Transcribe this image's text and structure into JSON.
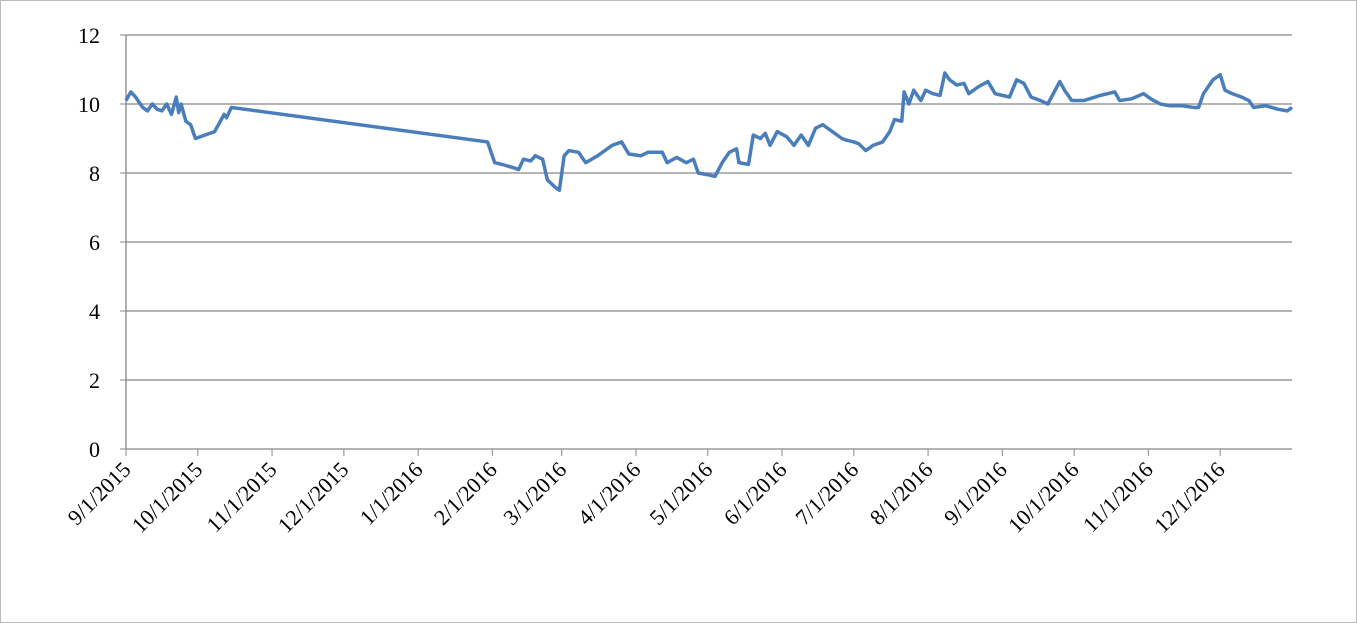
{
  "chart_data": {
    "type": "line",
    "x": [
      "9/1/2015",
      "9/3/2015",
      "9/5/2015",
      "9/8/2015",
      "9/10/2015",
      "9/12/2015",
      "9/14/2015",
      "9/16/2015",
      "9/18/2015",
      "9/20/2015",
      "9/22/2015",
      "9/23/2015",
      "9/24/2015",
      "9/26/2015",
      "9/28/2015",
      "9/30/2015",
      "10/2/2015",
      "10/8/2015",
      "10/12/2015",
      "10/13/2015",
      "10/15/2015",
      "1/30/2016",
      "2/2/2016",
      "2/5/2016",
      "2/10/2016",
      "2/12/2016",
      "2/14/2016",
      "2/17/2016",
      "2/19/2016",
      "2/22/2016",
      "2/24/2016",
      "2/27/2016",
      "2/29/2016",
      "3/2/2016",
      "3/4/2016",
      "3/8/2016",
      "3/11/2016",
      "3/16/2016",
      "3/22/2016",
      "3/26/2016",
      "3/29/2016",
      "4/3/2016",
      "4/6/2016",
      "4/12/2016",
      "4/14/2016",
      "4/18/2016",
      "4/22/2016",
      "4/25/2016",
      "4/27/2016",
      "5/1/2016",
      "5/4/2016",
      "5/7/2016",
      "5/10/2016",
      "5/13/2016",
      "5/14/2016",
      "5/18/2016",
      "5/20/2016",
      "5/23/2016",
      "5/25/2016",
      "5/27/2016",
      "5/30/2016",
      "6/3/2016",
      "6/6/2016",
      "6/9/2016",
      "6/12/2016",
      "6/15/2016",
      "6/18/2016",
      "6/22/2016",
      "6/26/2016",
      "6/28/2016",
      "7/1/2016",
      "7/3/2016",
      "7/6/2016",
      "7/9/2016",
      "7/13/2016",
      "7/16/2016",
      "7/18/2016",
      "7/21/2016",
      "7/22/2016",
      "7/24/2016",
      "7/26/2016",
      "7/29/2016",
      "7/31/2016",
      "8/3/2016",
      "8/6/2016",
      "8/8/2016",
      "8/10/2016",
      "8/13/2016",
      "8/16/2016",
      "8/18/2016",
      "8/22/2016",
      "8/26/2016",
      "8/29/2016",
      "9/1/2016",
      "9/4/2016",
      "9/7/2016",
      "9/10/2016",
      "9/13/2016",
      "9/17/2016",
      "9/20/2016",
      "9/25/2016",
      "9/27/2016",
      "9/30/2016",
      "10/5/2016",
      "10/12/2016",
      "10/18/2016",
      "10/20/2016",
      "10/25/2016",
      "10/30/2016",
      "11/2/2016",
      "11/6/2016",
      "11/10/2016",
      "11/15/2016",
      "11/20/2016",
      "11/22/2016",
      "11/24/2016",
      "11/28/2016",
      "12/1/2016",
      "12/3/2016",
      "12/6/2016",
      "12/10/2016",
      "12/13/2016",
      "12/15/2016",
      "12/20/2016",
      "12/25/2016",
      "12/29/2016",
      "12/31/2016"
    ],
    "series": [
      {
        "color": "#4a7ebb",
        "values": [
          10.1,
          10.35,
          10.2,
          9.9,
          9.8,
          10.0,
          9.85,
          9.8,
          10.0,
          9.7,
          10.2,
          9.75,
          10.0,
          9.5,
          9.4,
          9.0,
          9.05,
          9.2,
          9.7,
          9.6,
          9.9,
          8.9,
          8.3,
          8.25,
          8.15,
          8.1,
          8.4,
          8.35,
          8.5,
          8.4,
          7.8,
          7.6,
          7.5,
          8.5,
          8.65,
          8.6,
          8.3,
          8.5,
          8.8,
          8.9,
          8.55,
          8.5,
          8.6,
          8.6,
          8.3,
          8.45,
          8.3,
          8.4,
          8.0,
          7.95,
          7.9,
          8.3,
          8.6,
          8.7,
          8.3,
          8.25,
          9.1,
          9.0,
          9.15,
          8.8,
          9.2,
          9.05,
          8.8,
          9.1,
          8.8,
          9.3,
          9.4,
          9.2,
          9.0,
          8.95,
          8.9,
          8.85,
          8.65,
          8.8,
          8.9,
          9.2,
          9.55,
          9.5,
          10.35,
          10.0,
          10.4,
          10.1,
          10.4,
          10.3,
          10.25,
          10.9,
          10.7,
          10.55,
          10.6,
          10.3,
          10.5,
          10.65,
          10.3,
          10.25,
          10.2,
          10.7,
          10.6,
          10.2,
          10.1,
          10.0,
          10.65,
          10.4,
          10.1,
          10.1,
          10.25,
          10.35,
          10.1,
          10.15,
          10.3,
          10.15,
          10.0,
          9.95,
          9.95,
          9.9,
          9.9,
          10.3,
          10.7,
          10.85,
          10.4,
          10.3,
          10.2,
          10.1,
          9.9,
          9.95,
          9.85,
          9.8,
          9.9
        ]
      }
    ],
    "xlim": [
      "9/1/2015",
      "12/31/2016"
    ],
    "xticks": [
      "9/1/2015",
      "10/1/2015",
      "11/1/2015",
      "12/1/2015",
      "1/1/2016",
      "2/1/2016",
      "3/1/2016",
      "4/1/2016",
      "5/1/2016",
      "6/1/2016",
      "7/1/2016",
      "8/1/2016",
      "9/1/2016",
      "10/1/2016",
      "11/1/2016",
      "12/1/2016"
    ],
    "ylim": [
      0,
      12
    ],
    "yticks": [
      0,
      2,
      4,
      6,
      8,
      10,
      12
    ],
    "grid": true
  }
}
